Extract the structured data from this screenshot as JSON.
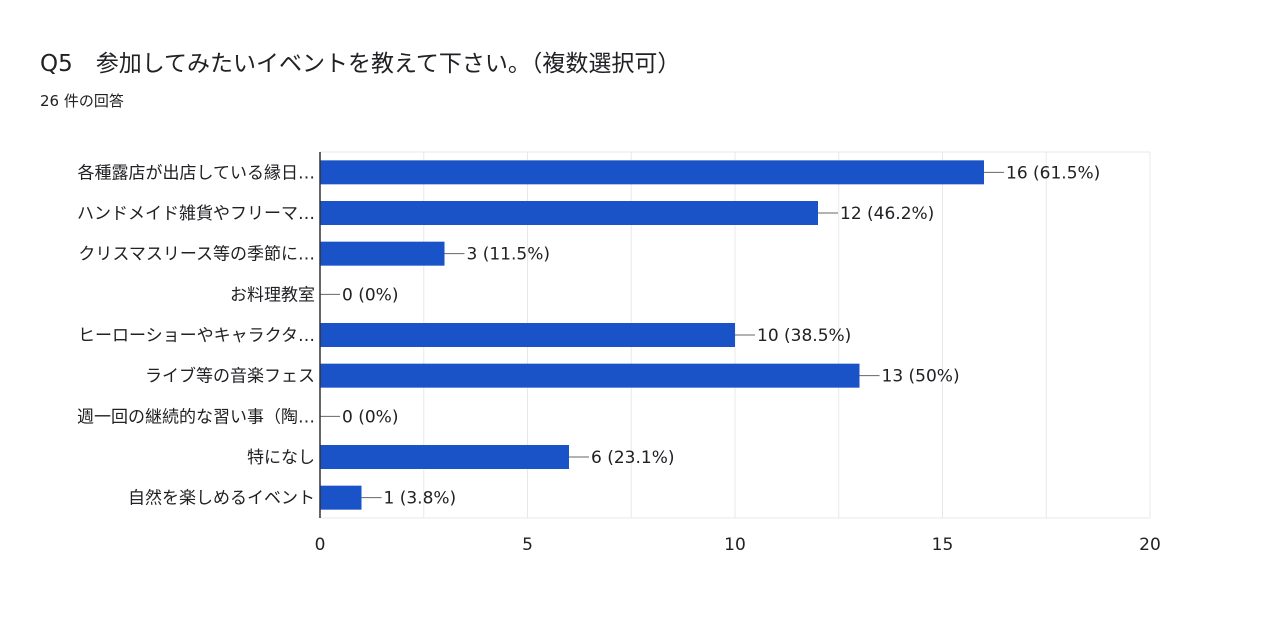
{
  "header": {
    "title": "Q5　参加してみたいイベントを教えて下さい。（複数選択可）",
    "subtitle": "26 件の回答"
  },
  "colors": {
    "bar": "#1a53c8",
    "grid": "#e8e8e8",
    "axis": "#333333"
  },
  "chart_data": {
    "type": "bar",
    "orientation": "horizontal",
    "title": "Q5　参加してみたいイベントを教えて下さい。（複数選択可）",
    "subtitle": "26 件の回答",
    "categories": [
      "各種露店が出店している縁日…",
      "ハンドメイド雑貨やフリーマ…",
      "クリスマスリース等の季節に…",
      "お料理教室",
      "ヒーローショーやキャラクタ…",
      "ライブ等の音楽フェス",
      "週一回の継続的な習い事（陶…",
      "特になし",
      "自然を楽しめるイベント"
    ],
    "values": [
      16,
      12,
      3,
      0,
      10,
      13,
      0,
      6,
      1
    ],
    "data_labels": [
      "16 (61.5%)",
      "12 (46.2%)",
      "3 (11.5%)",
      "0 (0%)",
      "10 (38.5%)",
      "13 (50%)",
      "0 (0%)",
      "6 (23.1%)",
      "1 (3.8%)"
    ],
    "xlim": [
      0,
      20
    ],
    "xticks": [
      0,
      5,
      10,
      15,
      20
    ],
    "xlabel": "",
    "ylabel": "",
    "grid": true,
    "legend": "none"
  }
}
